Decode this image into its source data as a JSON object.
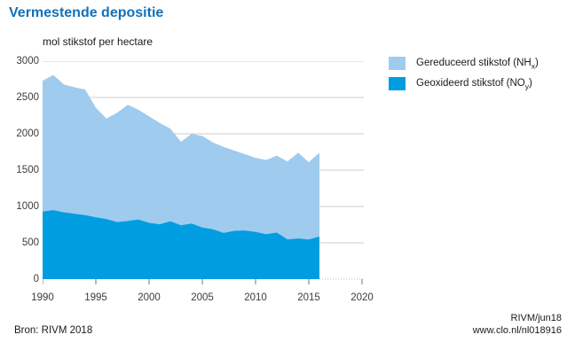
{
  "page": {
    "title": "Vermestende depositie"
  },
  "colors": {
    "title": "#1171b8",
    "light_series": "#9fcbee",
    "dark_series": "#009ee0",
    "gridline": "#cccccc",
    "baseline_extension": "#b5b5b5",
    "tick": "#767676",
    "axis_text": "#3c3c3c"
  },
  "legend": {
    "items": [
      {
        "pre": "Gereduceerd stikstof (NH",
        "sub": "x",
        "post": ")",
        "color": "#9fcbee"
      },
      {
        "pre": "Geoxideerd stikstof (NO",
        "sub": "y",
        "post": ")",
        "color": "#009ee0"
      }
    ]
  },
  "footer": {
    "source": "Bron: RIVM 2018",
    "credit": "RIVM/jun18",
    "url": "www.clo.nl/nl018916"
  },
  "chart_data": {
    "type": "area",
    "stacked": true,
    "title": "Vermestende depositie",
    "ylabel_unit": "mol stikstof per hectare",
    "grid": true,
    "legend_position": "right",
    "xlim": [
      1990,
      2020
    ],
    "ylim": [
      0,
      3000
    ],
    "x": [
      1990,
      1991,
      1992,
      1993,
      1994,
      1995,
      1996,
      1997,
      1998,
      1999,
      2000,
      2001,
      2002,
      2003,
      2004,
      2005,
      2006,
      2007,
      2008,
      2009,
      2010,
      2011,
      2012,
      2013,
      2014,
      2015,
      2016
    ],
    "series": [
      {
        "name": "Gereduceerd stikstof (NHx)",
        "color": "#9fcbee",
        "values": [
          1800,
          1860,
          1760,
          1740,
          1730,
          1510,
          1385,
          1505,
          1600,
          1510,
          1465,
          1395,
          1275,
          1150,
          1235,
          1260,
          1195,
          1185,
          1105,
          1050,
          1020,
          1020,
          1060,
          1075,
          1180,
          1065,
          1155
        ]
      },
      {
        "name": "Geoxideerd stikstof (NOy)",
        "color": "#009ee0",
        "values": [
          930,
          950,
          920,
          900,
          880,
          850,
          825,
          785,
          800,
          820,
          775,
          755,
          795,
          740,
          765,
          710,
          685,
          635,
          665,
          670,
          650,
          620,
          640,
          545,
          560,
          545,
          585
        ]
      }
    ],
    "totals": [
      2730,
      2810,
      2680,
      2640,
      2610,
      2360,
      2210,
      2290,
      2400,
      2330,
      2240,
      2150,
      2070,
      1890,
      2000,
      1970,
      1880,
      1820,
      1770,
      1720,
      1670,
      1640,
      1700,
      1620,
      1740,
      1610,
      1740
    ],
    "xticks": [
      1990,
      1995,
      2000,
      2005,
      2010,
      2015,
      2020
    ],
    "yticks": [
      0,
      500,
      1000,
      1500,
      2000,
      2500,
      3000
    ],
    "xtick_labels": [
      "1990",
      "1995",
      "2000",
      "2005",
      "2010",
      "2015",
      "2020"
    ],
    "ytick_labels": [
      "3000",
      "2500",
      "2000",
      "1500",
      "1000",
      "500",
      "0"
    ]
  }
}
